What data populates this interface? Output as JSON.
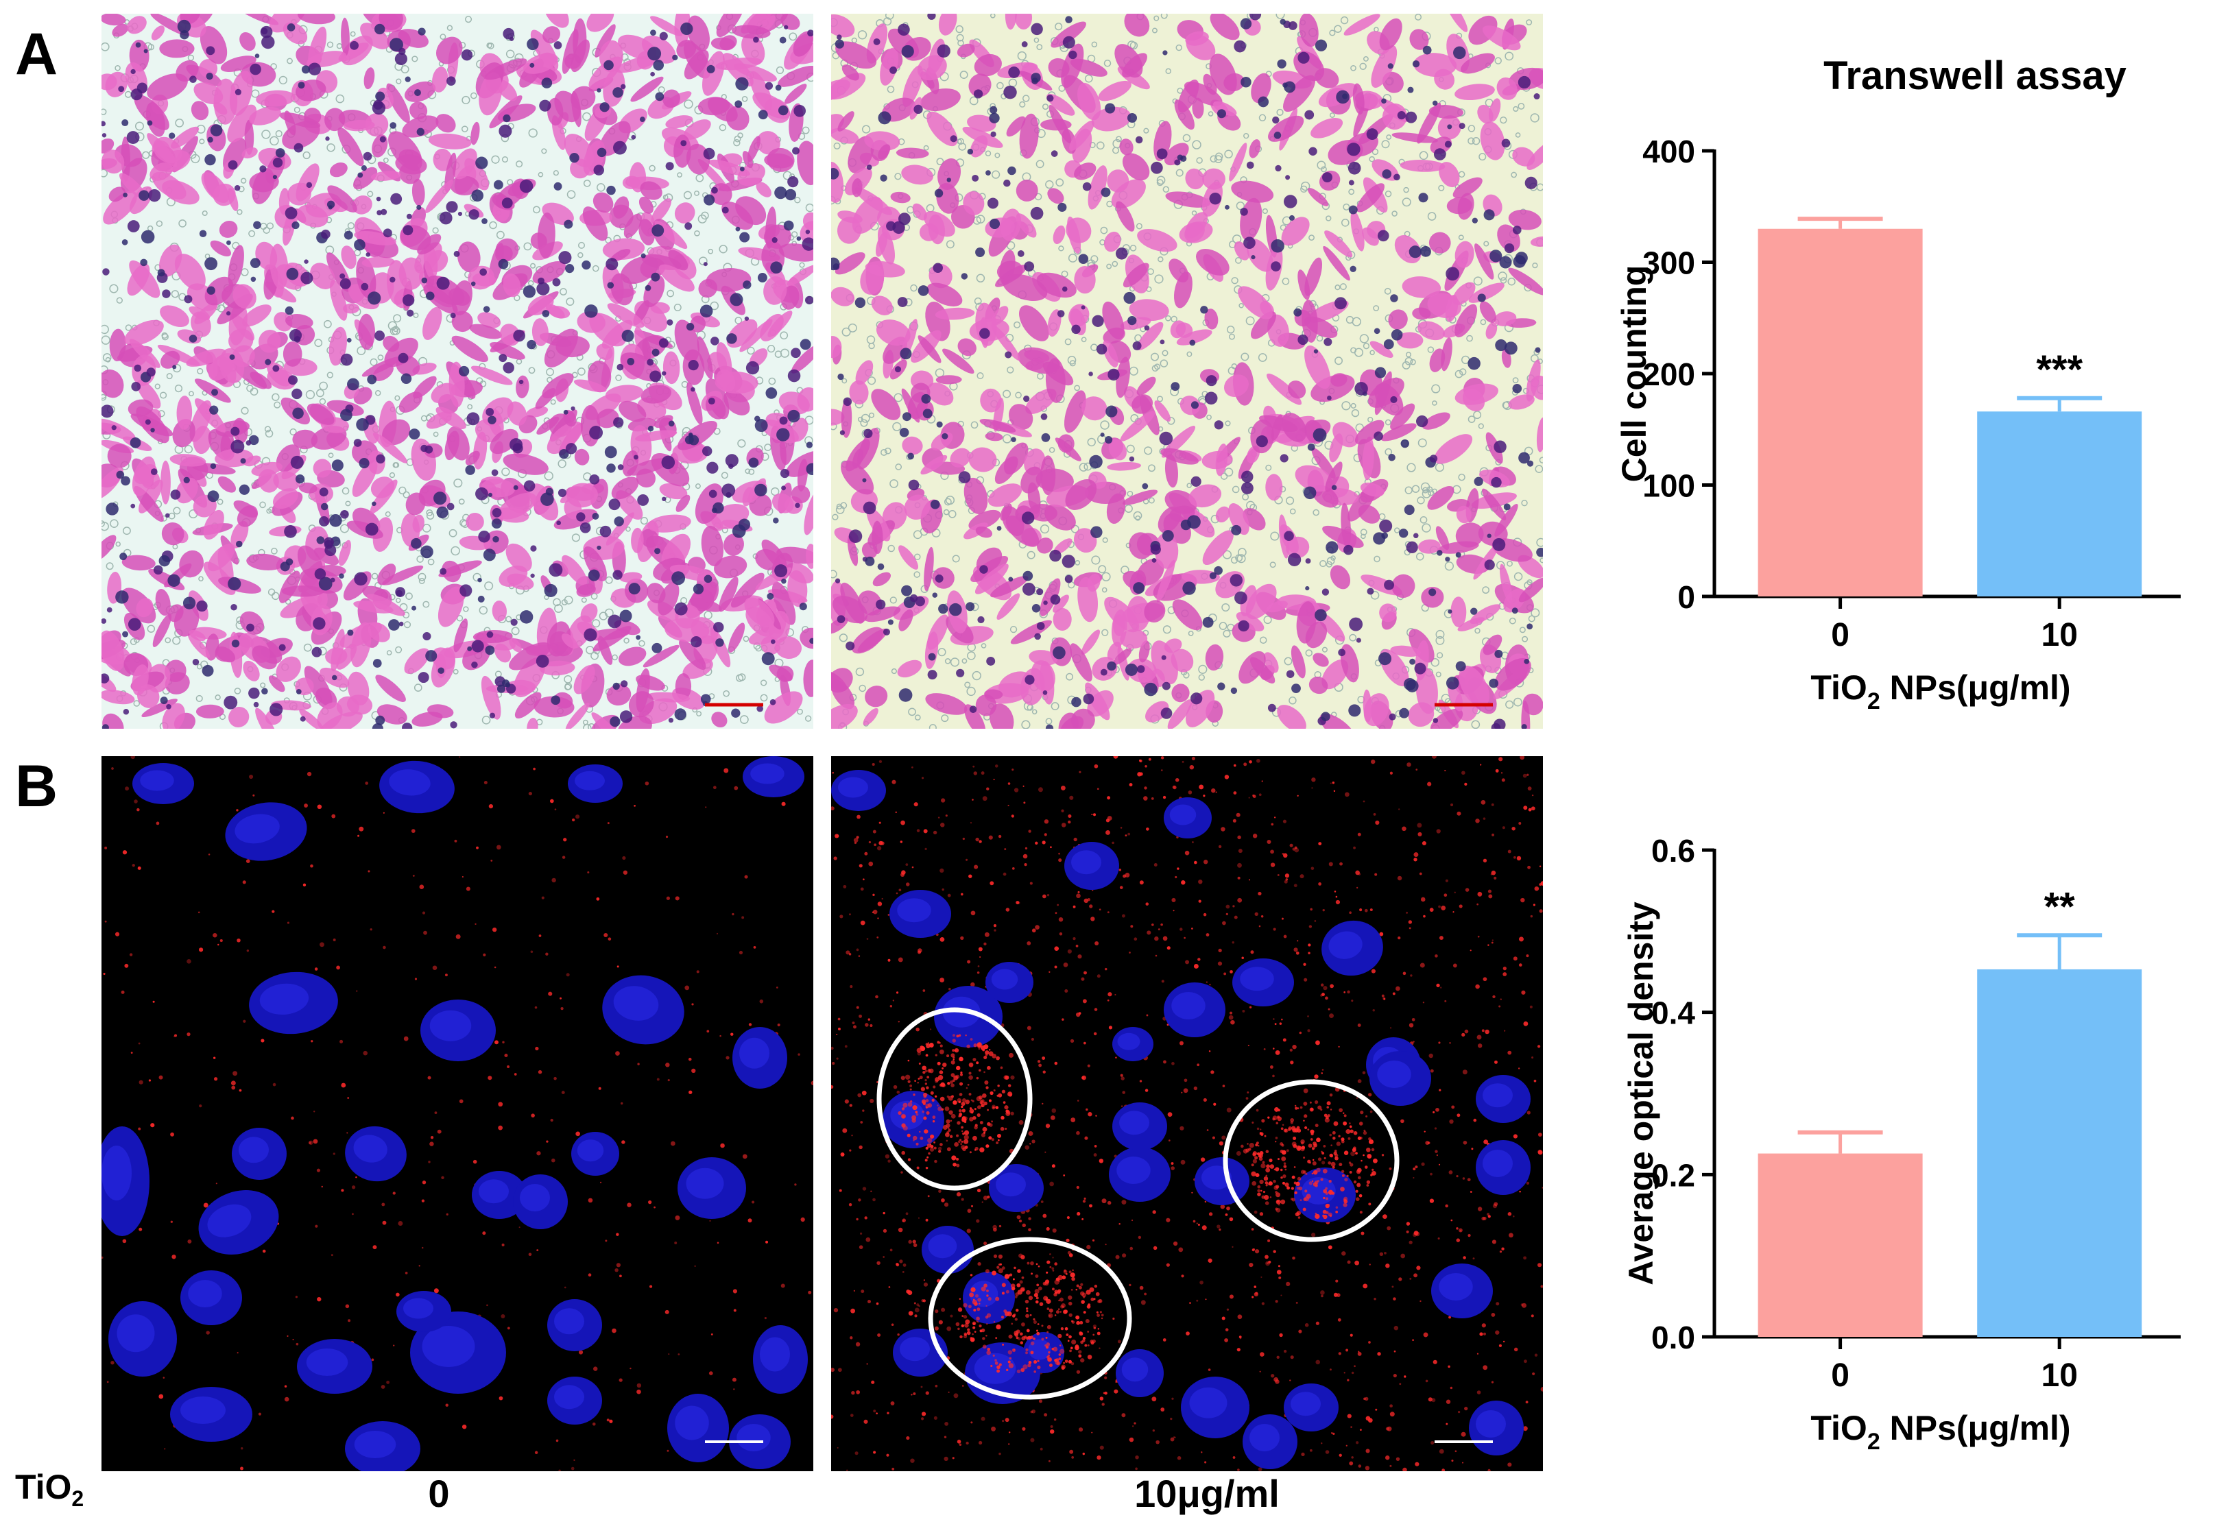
{
  "panels": {
    "A": {
      "letter": "A"
    },
    "B": {
      "letter": "B"
    }
  },
  "micrographs": {
    "a_control": {
      "description_scale": "100 μm"
    },
    "a_treated": {
      "description_scale": "100 μm"
    },
    "b_control": {
      "description_scale": "20,000 nm"
    },
    "b_treated": {
      "description_scale": "20,000 nm"
    }
  },
  "condition_labels": {
    "row_label": "TiO",
    "row_label_sub": "2",
    "control": "0",
    "treated": "10μg/ml"
  },
  "colors": {
    "bar_control": "#FCA19E",
    "bar_treated": "#74BFF8",
    "hne_pink": "#D64FB8",
    "hne_bg_a": "#EAF6F2",
    "hne_bg_b": "#EEF2D6",
    "nucleus_blue": "#1a1ad0",
    "lyso_red": "#ff2a2a"
  },
  "chart_data": [
    {
      "type": "bar",
      "title": "Transwell assay",
      "categories": [
        "0",
        "10"
      ],
      "values": [
        330,
        166
      ],
      "errors": [
        9,
        12
      ],
      "significance": [
        "",
        "***"
      ],
      "xlabel": "TiO",
      "xlabel_sub": "2",
      "xlabel_rest": " NPs(μg/ml)",
      "ylabel": "Cell counting",
      "ylim": [
        0,
        400
      ],
      "yticks": [
        "0",
        "100",
        "200",
        "300",
        "400"
      ]
    },
    {
      "type": "bar",
      "title": "",
      "categories": [
        "0",
        "10"
      ],
      "values": [
        0.226,
        0.453
      ],
      "errors": [
        0.026,
        0.042
      ],
      "significance": [
        "",
        "**"
      ],
      "xlabel": "TiO",
      "xlabel_sub": "2",
      "xlabel_rest": " NPs(μg/ml)",
      "ylabel": "Average optical density",
      "ylim": [
        0,
        0.6
      ],
      "yticks": [
        "0.0",
        "0.2",
        "0.4",
        "0.6"
      ]
    }
  ]
}
